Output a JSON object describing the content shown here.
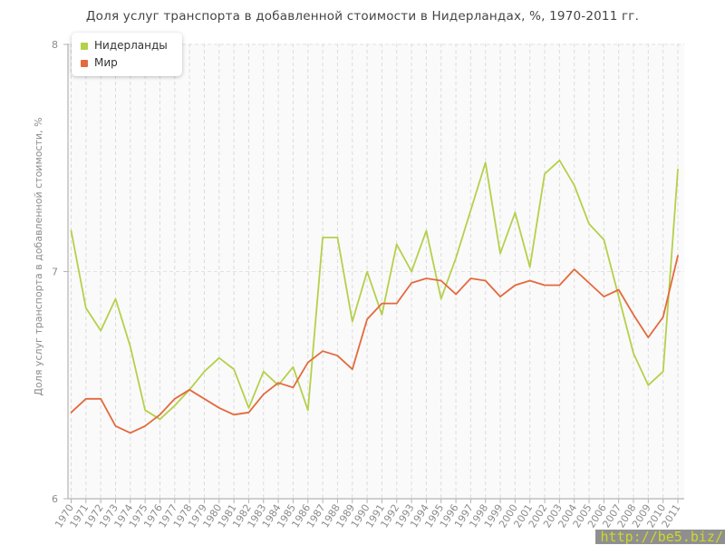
{
  "title": "Доля услуг транспорта в добавленной стоимости в Нидерландах, %, 1970-2011 гг.",
  "watermark": "http://be5.biz/",
  "axes": {
    "y_ticks": [
      6,
      7,
      8
    ],
    "y_label": "Доля услуг транспорта в добавленной стоимости, %"
  },
  "legend": {
    "position": "top-left",
    "items": [
      {
        "label": "Нидерланды",
        "color": "#b5d04a"
      },
      {
        "label": "Мир",
        "color": "#e4693d"
      }
    ]
  },
  "colors": {
    "plot_background": "#fafafa",
    "grid": "#dcdcdc",
    "spine": "#b3b3b3",
    "tick_label": "#8c8c8c",
    "title_text": "#454545",
    "watermark_bg": "#8f8f8f",
    "watermark_text": "#cdd829"
  },
  "chart_data": {
    "type": "line",
    "title": "Доля услуг транспорта в добавленной стоимости в Нидерландах, %, 1970-2011 гг.",
    "xlabel": "",
    "ylabel": "Доля услуг транспорта в добавленной стоимости, %",
    "ylim": [
      6,
      8
    ],
    "grid": true,
    "legend_position": "top-left",
    "x": [
      1970,
      1971,
      1972,
      1973,
      1974,
      1975,
      1976,
      1977,
      1978,
      1979,
      1980,
      1981,
      1982,
      1983,
      1984,
      1985,
      1986,
      1987,
      1988,
      1989,
      1990,
      1991,
      1992,
      1993,
      1994,
      1995,
      1996,
      1997,
      1998,
      1999,
      2000,
      2001,
      2002,
      2003,
      2004,
      2005,
      2006,
      2007,
      2008,
      2009,
      2010,
      2011
    ],
    "series": [
      {
        "name": "Нидерланды",
        "color": "#b5d04a",
        "values": [
          7.18,
          6.84,
          6.74,
          6.88,
          6.67,
          6.39,
          6.35,
          6.41,
          6.48,
          6.56,
          6.62,
          6.57,
          6.4,
          6.56,
          6.5,
          6.58,
          6.39,
          7.15,
          7.15,
          6.78,
          7.0,
          6.81,
          7.12,
          7.0,
          7.18,
          6.88,
          7.06,
          7.27,
          7.48,
          7.08,
          7.26,
          7.02,
          7.43,
          7.49,
          7.38,
          7.21,
          7.14,
          6.89,
          6.64,
          6.5,
          6.56,
          7.45
        ]
      },
      {
        "name": "Мир",
        "color": "#e4693d",
        "values": [
          6.38,
          6.44,
          6.44,
          6.32,
          6.29,
          6.32,
          6.37,
          6.44,
          6.48,
          6.44,
          6.4,
          6.37,
          6.38,
          6.46,
          6.51,
          6.49,
          6.6,
          6.65,
          6.63,
          6.57,
          6.79,
          6.86,
          6.86,
          6.95,
          6.97,
          6.96,
          6.9,
          6.97,
          6.96,
          6.89,
          6.94,
          6.96,
          6.94,
          6.94,
          7.01,
          6.95,
          6.89,
          6.92,
          6.81,
          6.71,
          6.8,
          7.07
        ]
      }
    ]
  }
}
